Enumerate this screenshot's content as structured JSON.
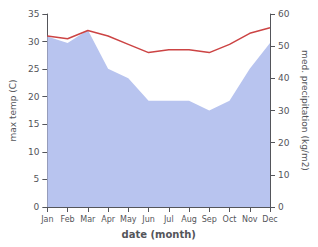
{
  "chart_data": {
    "type": "line",
    "categories": [
      "Jan",
      "Feb",
      "Mar",
      "Apr",
      "May",
      "Jun",
      "Jul",
      "Aug",
      "Sep",
      "Oct",
      "Nov",
      "Dec"
    ],
    "xlabel": "date (month)",
    "ylabel": "max temp (C)",
    "y2label": "med. precipitation (kg/m2)",
    "series": [
      {
        "type": "area",
        "axis": "y2",
        "color": "#b8c4ef",
        "values": [
          53.0,
          51.0,
          55.0,
          43.0,
          40.0,
          33.0,
          33.0,
          33.0,
          30.0,
          33.0,
          43.0,
          51.0
        ]
      },
      {
        "type": "line",
        "color": "#cc4444",
        "values": [
          31.0,
          30.5,
          32.0,
          31.0,
          29.5,
          28.0,
          28.5,
          28.5,
          28.0,
          29.5,
          31.5,
          32.5
        ]
      }
    ],
    "ylim": [
      0,
      35
    ],
    "yticks": [
      0,
      5,
      10,
      15,
      20,
      25,
      30,
      35
    ],
    "y2lim": [
      0,
      60
    ],
    "y2ticks": [
      0,
      10,
      20,
      30,
      40,
      50,
      60
    ],
    "grid": false
  }
}
